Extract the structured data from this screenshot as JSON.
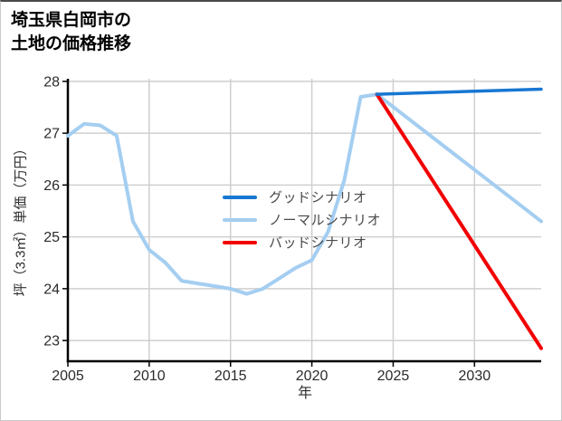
{
  "title": {
    "line1": "埼玉県白岡市の",
    "line2": "土地の価格推移"
  },
  "axes": {
    "x_label": "年",
    "y_label": "坪（3.3㎡）単価（万円）",
    "x_ticks": [
      2005,
      2010,
      2015,
      2020,
      2025,
      2030
    ],
    "y_ticks": [
      23,
      24,
      25,
      26,
      27,
      28
    ]
  },
  "legend": {
    "items": [
      {
        "label": "グッドシナリオ",
        "color": "#1777d2"
      },
      {
        "label": "ノーマルシナリオ",
        "color": "#a4cef1"
      },
      {
        "label": "バッドシナリオ",
        "color": "#f20000"
      }
    ]
  },
  "colors": {
    "grid": "#cfcfcf",
    "spine": "#000000",
    "tick_text": "#2b2b2b",
    "good_scenario": "#1777d2",
    "normal_scenario": "#a4cef1",
    "bad_scenario": "#f20000"
  },
  "chart_data": {
    "type": "line",
    "title": "埼玉県白岡市の土地の価格推移",
    "xlabel": "年",
    "ylabel": "坪（3.3㎡）単価（万円）",
    "xlim": [
      2005,
      2034.1
    ],
    "ylim": [
      22.6,
      28.05
    ],
    "grid": true,
    "legend_position": "center",
    "series": [
      {
        "id": "good",
        "name": "グッドシナリオ",
        "color": "#1777d2",
        "x": [
          2024,
          2034.1
        ],
        "y": [
          27.75,
          27.85
        ]
      },
      {
        "id": "normal",
        "name": "ノーマルシナリオ",
        "color": "#a4cef1",
        "x": [
          2005,
          2006,
          2007,
          2008,
          2009,
          2010,
          2011,
          2012,
          2013,
          2014,
          2015,
          2016,
          2017,
          2018,
          2019,
          2020,
          2021,
          2022,
          2023,
          2024,
          2034.1
        ],
        "y": [
          26.95,
          27.18,
          27.15,
          26.95,
          25.3,
          24.75,
          24.5,
          24.15,
          24.1,
          24.05,
          24.0,
          23.9,
          24.0,
          24.2,
          24.4,
          24.55,
          25.1,
          26.1,
          27.7,
          27.75,
          25.3
        ]
      },
      {
        "id": "bad",
        "name": "バッドシナリオ",
        "color": "#f20000",
        "x": [
          2024,
          2034.1
        ],
        "y": [
          27.75,
          22.85
        ]
      }
    ]
  }
}
